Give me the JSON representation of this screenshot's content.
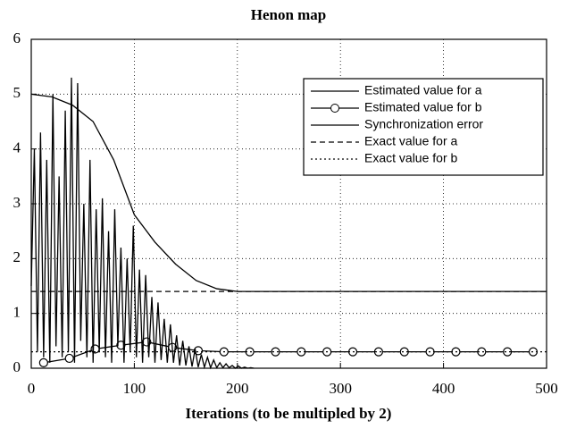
{
  "chart_data": {
    "type": "line",
    "title": "Henon map",
    "xlabel": "Iterations (to be multipled by 2)",
    "xlim": [
      0,
      500
    ],
    "ylim": [
      0,
      6
    ],
    "xticks": [
      0,
      100,
      200,
      300,
      400,
      500
    ],
    "yticks": [
      0,
      1,
      2,
      3,
      4,
      5,
      6
    ],
    "grid": true,
    "legend": "upper right",
    "series": [
      {
        "name": "Estimated value for a",
        "color": "#000000",
        "dash": "solid",
        "marker": "none",
        "x": [
          0,
          20,
          40,
          60,
          80,
          100,
          120,
          140,
          160,
          180,
          200,
          250,
          300,
          400,
          500
        ],
        "values": [
          5,
          4.95,
          4.8,
          4.5,
          3.8,
          2.8,
          2.3,
          1.9,
          1.6,
          1.45,
          1.4,
          1.4,
          1.4,
          1.4,
          1.4
        ]
      },
      {
        "name": "Estimated value for b",
        "color": "#000000",
        "dash": "solid",
        "marker": "circle",
        "x": [
          12,
          37,
          62,
          87,
          112,
          137,
          162,
          187,
          212,
          237,
          262,
          287,
          312,
          337,
          362,
          387,
          412,
          437,
          462,
          487
        ],
        "values": [
          0.1,
          0.18,
          0.35,
          0.42,
          0.48,
          0.38,
          0.32,
          0.3,
          0.3,
          0.3,
          0.3,
          0.3,
          0.3,
          0.3,
          0.3,
          0.3,
          0.3,
          0.3,
          0.3,
          0.3
        ]
      },
      {
        "name": "Synchronization error",
        "color": "#000000",
        "dash": "solid",
        "marker": "none",
        "x": [
          0,
          3,
          6,
          9,
          12,
          15,
          18,
          21,
          24,
          27,
          30,
          33,
          36,
          39,
          42,
          45,
          48,
          51,
          54,
          57,
          60,
          63,
          66,
          69,
          72,
          75,
          78,
          81,
          84,
          87,
          90,
          93,
          96,
          99,
          102,
          105,
          108,
          111,
          114,
          117,
          120,
          123,
          126,
          129,
          132,
          135,
          138,
          141,
          144,
          147,
          150,
          153,
          156,
          159,
          162,
          165,
          168,
          171,
          174,
          177,
          180,
          183,
          186,
          189,
          192,
          195,
          198,
          201,
          204,
          207,
          210,
          213,
          216
        ],
        "values": [
          1.5,
          4.0,
          0.3,
          4.3,
          0.2,
          3.8,
          0.1,
          5.0,
          0.4,
          3.5,
          0.2,
          4.7,
          0.3,
          5.3,
          0.1,
          5.2,
          0.5,
          3.0,
          0.2,
          3.8,
          0.1,
          2.9,
          0.3,
          3.1,
          0.2,
          2.5,
          0.1,
          2.9,
          0.4,
          2.2,
          0.1,
          2.0,
          0.3,
          2.6,
          0.2,
          1.8,
          0.1,
          1.7,
          0.2,
          1.3,
          0.1,
          1.2,
          0.15,
          0.9,
          0.1,
          0.8,
          0.1,
          0.6,
          0.05,
          0.5,
          0.05,
          0.4,
          0.03,
          0.35,
          0.02,
          0.25,
          0.02,
          0.2,
          0.01,
          0.15,
          0.01,
          0.1,
          0.01,
          0.08,
          0.01,
          0.05,
          0,
          0.04,
          0,
          0.02,
          0,
          0.01,
          0
        ]
      },
      {
        "name": "Exact value for a",
        "color": "#000000",
        "dash": "dashed",
        "marker": "none",
        "x": [
          0,
          500
        ],
        "values": [
          1.4,
          1.4
        ]
      },
      {
        "name": "Exact value for b",
        "color": "#000000",
        "dash": "dotted",
        "marker": "none",
        "x": [
          0,
          500
        ],
        "values": [
          0.3,
          0.3
        ]
      }
    ]
  }
}
